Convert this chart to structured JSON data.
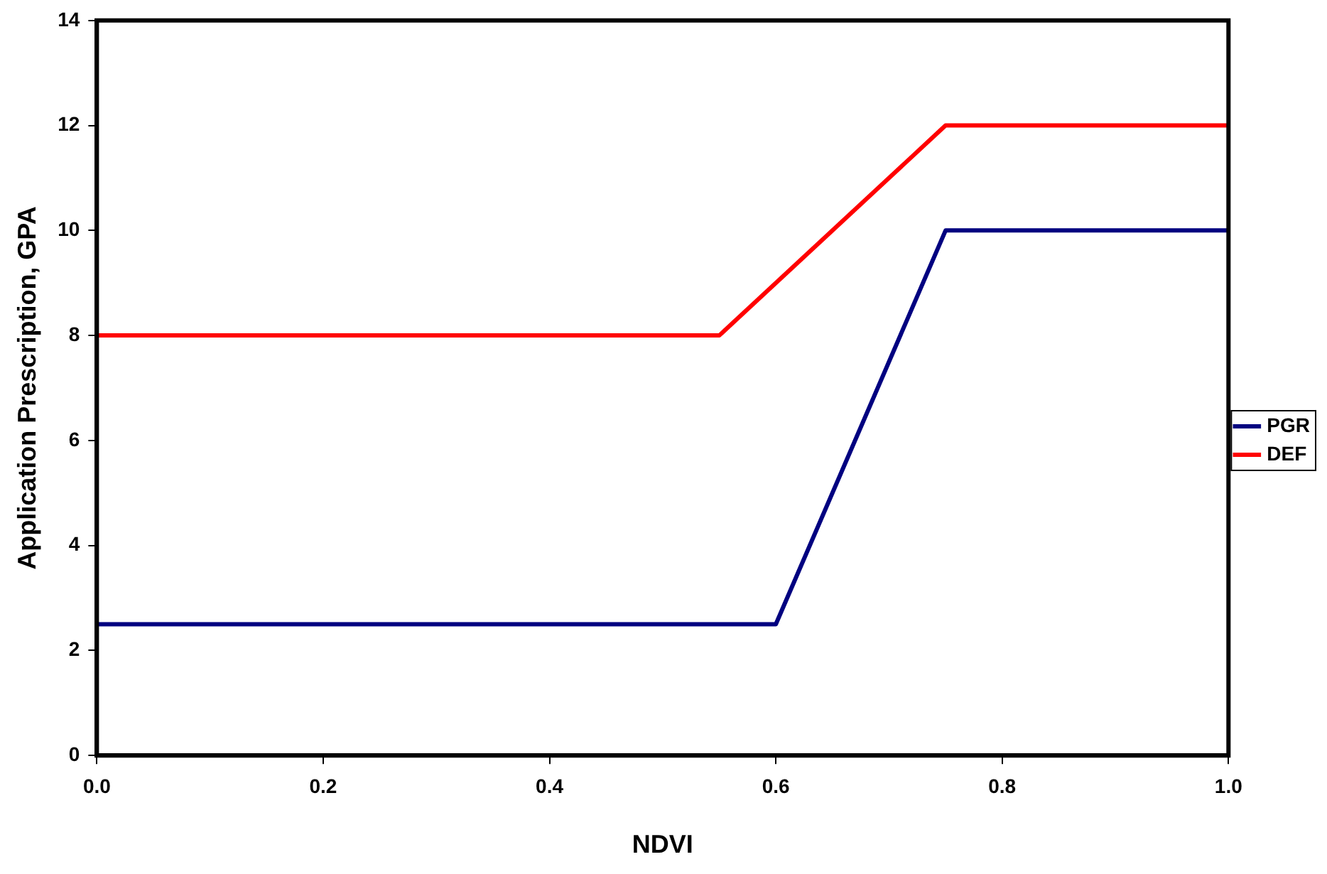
{
  "chart_data": {
    "type": "line",
    "xlabel": "NDVI",
    "ylabel": "Application Prescription, GPA",
    "xlim": [
      0,
      1
    ],
    "xticks": [
      {
        "value": 0,
        "label": "0.0"
      },
      {
        "value": 0.2,
        "label": "0.2"
      },
      {
        "value": 0.4,
        "label": "0.4"
      },
      {
        "value": 0.6,
        "label": "0.6"
      },
      {
        "value": 0.8,
        "label": "0.8"
      },
      {
        "value": 1,
        "label": "1.0"
      }
    ],
    "ylim": [
      0,
      14
    ],
    "yticks": [
      0,
      2,
      4,
      6,
      8,
      10,
      12,
      14
    ],
    "grid": false,
    "legend": "right",
    "marker": "none",
    "line_style": "solid",
    "series": [
      {
        "name": "PGR",
        "color": "#000080",
        "x": [
          0,
          0.6,
          0.75,
          1
        ],
        "values": [
          2.5,
          2.5,
          10,
          10
        ]
      },
      {
        "name": "DEF",
        "color": "#ff0000",
        "x": [
          0,
          0.55,
          0.75,
          1
        ],
        "values": [
          8,
          8,
          12,
          12
        ]
      }
    ]
  }
}
